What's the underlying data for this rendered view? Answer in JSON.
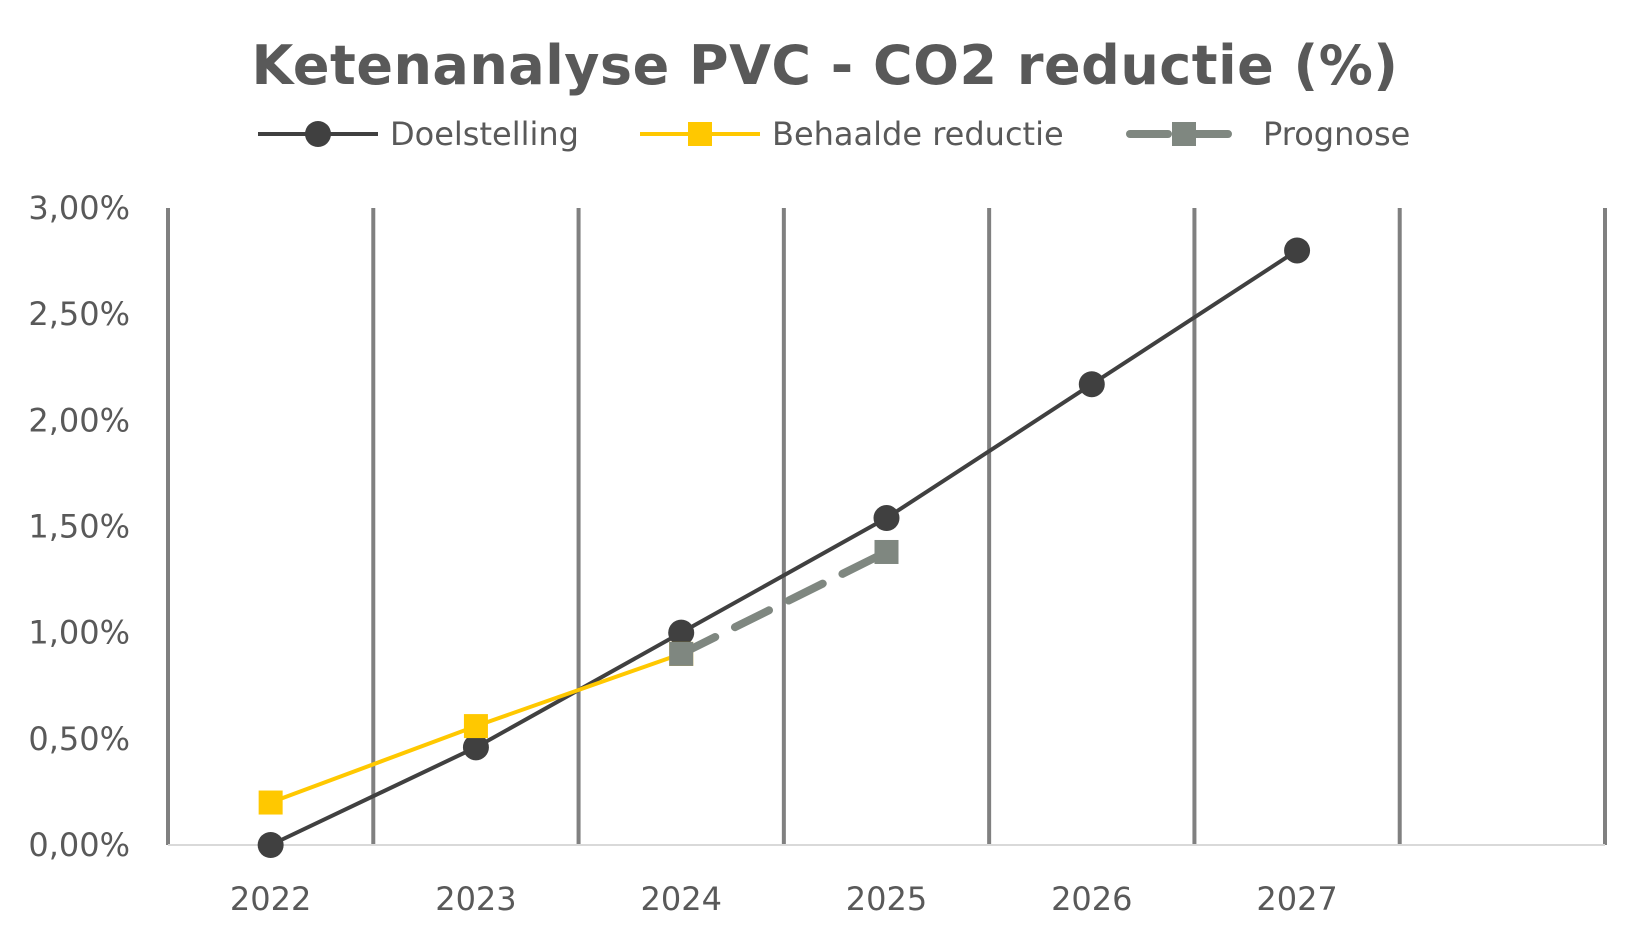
{
  "chart_data": {
    "type": "line",
    "title": "Ketenanalyse PVC - CO2 reductie (%)",
    "xlabel": "",
    "ylabel": "",
    "categories": [
      "2022",
      "2023",
      "2024",
      "2025",
      "2026",
      "2027"
    ],
    "y_ticks": [
      "0,00%",
      "0,50%",
      "1,00%",
      "1,50%",
      "2,00%",
      "2,50%",
      "3,00%"
    ],
    "ylim": [
      0,
      3
    ],
    "grid": "vertical",
    "legend_position": "top",
    "series": [
      {
        "name": "Doelstelling",
        "values": [
          0.0,
          0.46,
          1.0,
          1.54,
          2.17,
          2.8
        ],
        "color": "#404040",
        "marker": "circle",
        "dash": "solid"
      },
      {
        "name": "Behaalde reductie",
        "values": [
          0.2,
          0.56,
          0.9,
          null,
          null,
          null
        ],
        "color": "#FFC800",
        "marker": "square",
        "dash": "solid"
      },
      {
        "name": "Prognose",
        "values": [
          null,
          null,
          0.9,
          1.38,
          null,
          null
        ],
        "color": "#7F8780",
        "marker": "square",
        "dash": "dashed"
      }
    ]
  }
}
